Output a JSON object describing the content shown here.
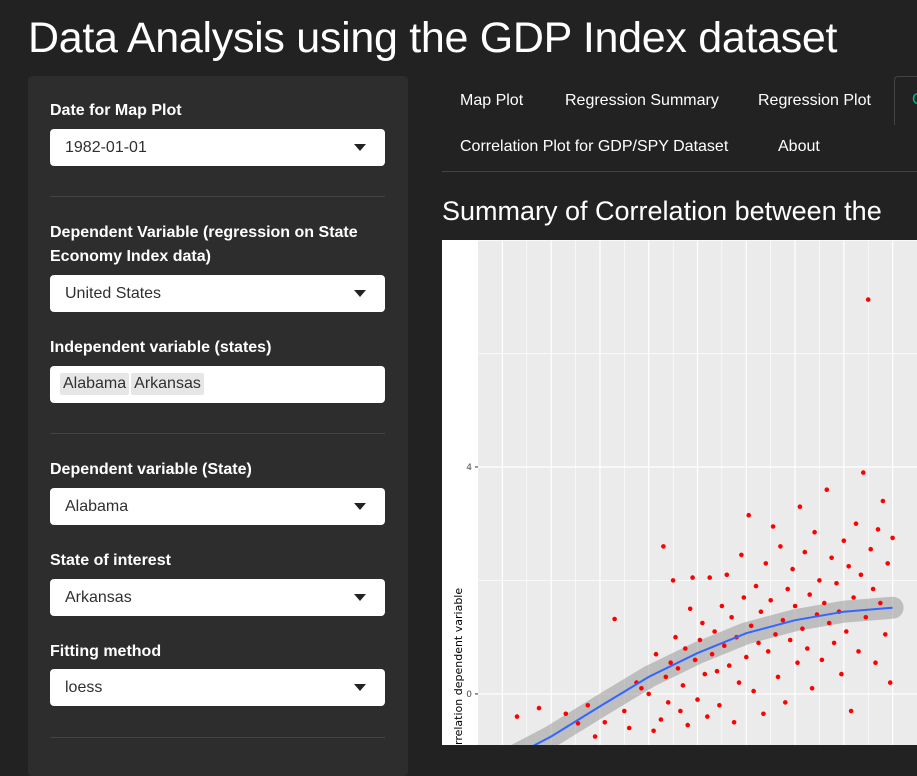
{
  "app": {
    "title": "Data Analysis using the GDP Index dataset"
  },
  "sidebar": {
    "map_date": {
      "label": "Date for Map Plot",
      "value": "1982-01-01"
    },
    "dependent_regression": {
      "label": "Dependent Variable (regression on State Economy Index data)",
      "value": "United States"
    },
    "independent_states": {
      "label": "Independent variable (states)",
      "tags": [
        "Alabama",
        "Arkansas"
      ]
    },
    "dependent_state": {
      "label": "Dependent variable (State)",
      "value": "Alabama"
    },
    "state_of_interest": {
      "label": "State of interest",
      "value": "Arkansas"
    },
    "fitting_method": {
      "label": "Fitting method",
      "value": "loess"
    }
  },
  "tabs": {
    "items": [
      "Map Plot",
      "Regression Summary",
      "Regression Plot",
      "Correlation Plot for GDP/SPY Dataset",
      "About"
    ],
    "active_partial_glyph": "C",
    "active_color": "#00bc8c"
  },
  "main": {
    "section_title": "Summary of Correlation between the",
    "y_axis_label": "rrelation dependent variable"
  },
  "chart_data": {
    "type": "scatter",
    "y_ticks": [
      "4",
      "0"
    ],
    "ylim": [
      -0.9,
      8.0
    ],
    "grid": true,
    "panel_color": "#ebebeb",
    "point_color": "#ff0000",
    "smooth_color": "#3366ff",
    "band_color": "#999999",
    "smooth_method": "loess",
    "smooth_curve": [
      [
        0.0,
        -1.2
      ],
      [
        0.2,
        -0.75
      ],
      [
        0.4,
        -0.22
      ],
      [
        0.6,
        0.3
      ],
      [
        0.8,
        0.72
      ],
      [
        1.0,
        1.07
      ],
      [
        1.2,
        1.3
      ],
      [
        1.4,
        1.45
      ],
      [
        1.6,
        1.52
      ]
    ],
    "points": [
      [
        0.06,
        -0.4
      ],
      [
        0.15,
        -0.25
      ],
      [
        0.26,
        -0.35
      ],
      [
        0.31,
        -0.52
      ],
      [
        0.35,
        -0.2
      ],
      [
        0.38,
        -0.75
      ],
      [
        0.42,
        -0.5
      ],
      [
        0.46,
        1.32
      ],
      [
        0.5,
        -0.3
      ],
      [
        0.52,
        -0.6
      ],
      [
        0.55,
        0.2
      ],
      [
        0.57,
        0.1
      ],
      [
        0.6,
        0.0
      ],
      [
        0.62,
        -0.65
      ],
      [
        0.63,
        0.7
      ],
      [
        0.65,
        -0.45
      ],
      [
        0.66,
        2.6
      ],
      [
        0.67,
        0.3
      ],
      [
        0.68,
        -0.15
      ],
      [
        0.69,
        0.55
      ],
      [
        0.7,
        2.0
      ],
      [
        0.71,
        1.0
      ],
      [
        0.72,
        0.45
      ],
      [
        0.73,
        -0.3
      ],
      [
        0.74,
        0.15
      ],
      [
        0.75,
        0.8
      ],
      [
        0.76,
        -0.55
      ],
      [
        0.77,
        1.5
      ],
      [
        0.78,
        2.05
      ],
      [
        0.79,
        0.6
      ],
      [
        0.8,
        -0.1
      ],
      [
        0.81,
        0.95
      ],
      [
        0.82,
        1.25
      ],
      [
        0.83,
        0.35
      ],
      [
        0.84,
        -0.4
      ],
      [
        0.85,
        2.05
      ],
      [
        0.86,
        0.7
      ],
      [
        0.87,
        1.1
      ],
      [
        0.88,
        0.4
      ],
      [
        0.89,
        -0.2
      ],
      [
        0.9,
        1.55
      ],
      [
        0.91,
        0.85
      ],
      [
        0.92,
        2.1
      ],
      [
        0.93,
        0.5
      ],
      [
        0.94,
        1.35
      ],
      [
        0.95,
        -0.5
      ],
      [
        0.96,
        1.0
      ],
      [
        0.97,
        0.2
      ],
      [
        0.98,
        2.45
      ],
      [
        0.99,
        1.7
      ],
      [
        1.0,
        0.65
      ],
      [
        1.01,
        3.15
      ],
      [
        1.02,
        1.2
      ],
      [
        1.03,
        0.05
      ],
      [
        1.04,
        1.9
      ],
      [
        1.05,
        0.9
      ],
      [
        1.06,
        1.45
      ],
      [
        1.07,
        -0.35
      ],
      [
        1.08,
        2.3
      ],
      [
        1.09,
        0.75
      ],
      [
        1.1,
        1.65
      ],
      [
        1.11,
        2.95
      ],
      [
        1.12,
        1.05
      ],
      [
        1.13,
        0.3
      ],
      [
        1.14,
        2.6
      ],
      [
        1.15,
        1.3
      ],
      [
        1.16,
        -0.15
      ],
      [
        1.17,
        1.85
      ],
      [
        1.18,
        0.95
      ],
      [
        1.19,
        2.2
      ],
      [
        1.2,
        1.55
      ],
      [
        1.21,
        0.55
      ],
      [
        1.22,
        3.3
      ],
      [
        1.23,
        1.15
      ],
      [
        1.24,
        2.5
      ],
      [
        1.25,
        0.8
      ],
      [
        1.26,
        1.75
      ],
      [
        1.27,
        0.1
      ],
      [
        1.28,
        2.85
      ],
      [
        1.29,
        1.4
      ],
      [
        1.3,
        2.0
      ],
      [
        1.31,
        0.6
      ],
      [
        1.32,
        1.6
      ],
      [
        1.33,
        3.6
      ],
      [
        1.34,
        1.25
      ],
      [
        1.35,
        2.4
      ],
      [
        1.36,
        0.9
      ],
      [
        1.37,
        1.95
      ],
      [
        1.38,
        1.45
      ],
      [
        1.39,
        0.35
      ],
      [
        1.4,
        2.7
      ],
      [
        1.41,
        1.1
      ],
      [
        1.42,
        2.25
      ],
      [
        1.43,
        -0.3
      ],
      [
        1.44,
        1.7
      ],
      [
        1.45,
        3.0
      ],
      [
        1.46,
        0.75
      ],
      [
        1.47,
        2.1
      ],
      [
        1.48,
        3.9
      ],
      [
        1.49,
        1.35
      ],
      [
        1.5,
        6.95
      ],
      [
        1.51,
        2.55
      ],
      [
        1.52,
        1.85
      ],
      [
        1.53,
        0.55
      ],
      [
        1.54,
        2.9
      ],
      [
        1.55,
        1.6
      ],
      [
        1.56,
        3.4
      ],
      [
        1.57,
        1.05
      ],
      [
        1.58,
        2.3
      ],
      [
        1.59,
        0.2
      ],
      [
        1.6,
        2.75
      ]
    ]
  }
}
